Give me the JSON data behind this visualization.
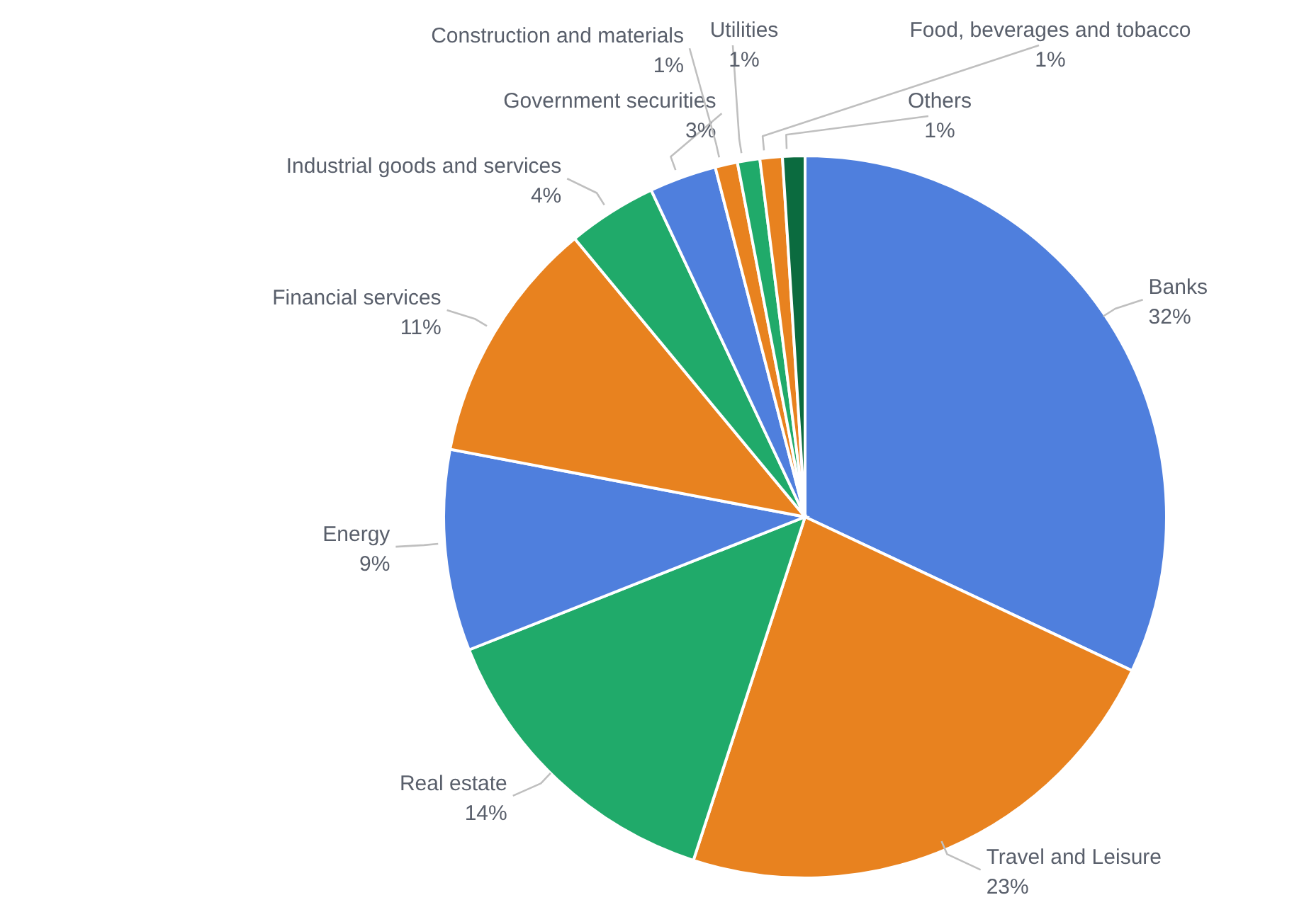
{
  "chart_data": {
    "type": "pie",
    "categories": [
      "Banks",
      "Travel and Leisure",
      "Real estate",
      "Energy",
      "Financial services",
      "Industrial goods and services",
      "Government securities",
      "Construction and materials",
      "Utilities",
      "Food, beverages and tobacco",
      "Others"
    ],
    "values": [
      32,
      23,
      14,
      9,
      11,
      4,
      3,
      1,
      1,
      1,
      1
    ],
    "colors": [
      "#4f7fdd",
      "#e8821f",
      "#20aa6a",
      "#4f7fdd",
      "#e8821f",
      "#20aa6a",
      "#4f7fdd",
      "#e8821f",
      "#20aa6a",
      "#e8821f",
      "#0b6b3f"
    ],
    "value_labels": [
      "32%",
      "23%",
      "14%",
      "9%",
      "11%",
      "4%",
      "3%",
      "1%",
      "1%",
      "1%",
      "1%"
    ],
    "legend": false
  }
}
